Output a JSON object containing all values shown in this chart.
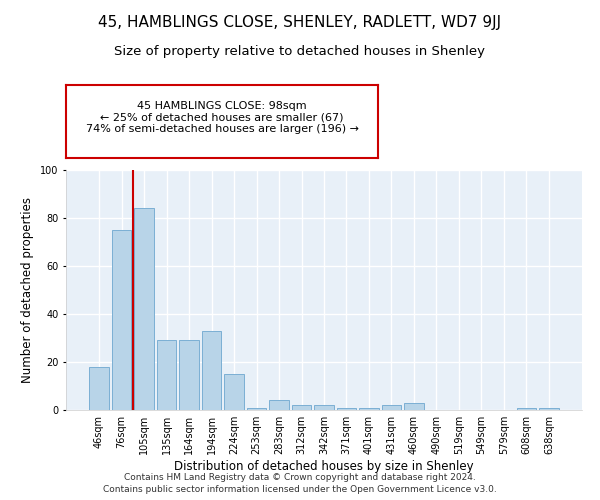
{
  "title": "45, HAMBLINGS CLOSE, SHENLEY, RADLETT, WD7 9JJ",
  "subtitle": "Size of property relative to detached houses in Shenley",
  "xlabel": "Distribution of detached houses by size in Shenley",
  "ylabel": "Number of detached properties",
  "categories": [
    "46sqm",
    "76sqm",
    "105sqm",
    "135sqm",
    "164sqm",
    "194sqm",
    "224sqm",
    "253sqm",
    "283sqm",
    "312sqm",
    "342sqm",
    "371sqm",
    "401sqm",
    "431sqm",
    "460sqm",
    "490sqm",
    "519sqm",
    "549sqm",
    "579sqm",
    "608sqm",
    "638sqm"
  ],
  "values": [
    18,
    75,
    84,
    29,
    29,
    33,
    15,
    1,
    4,
    2,
    2,
    1,
    1,
    2,
    3,
    0,
    0,
    0,
    0,
    1,
    1
  ],
  "bar_color": "#b8d4e8",
  "bar_edgecolor": "#7bafd4",
  "red_line_x": 1.5,
  "annotation_text": "45 HAMBLINGS CLOSE: 98sqm\n← 25% of detached houses are smaller (67)\n74% of semi-detached houses are larger (196) →",
  "annotation_box_facecolor": "#ffffff",
  "annotation_box_edgecolor": "#cc0000",
  "ylim": [
    0,
    100
  ],
  "yticks": [
    0,
    20,
    40,
    60,
    80,
    100
  ],
  "title_fontsize": 11,
  "subtitle_fontsize": 9.5,
  "xlabel_fontsize": 8.5,
  "ylabel_fontsize": 8.5,
  "tick_fontsize": 7,
  "footer_line1": "Contains HM Land Registry data © Crown copyright and database right 2024.",
  "footer_line2": "Contains public sector information licensed under the Open Government Licence v3.0.",
  "fig_bg_color": "#ffffff",
  "plot_bg_color": "#e8f0f8",
  "grid_color": "#ffffff"
}
